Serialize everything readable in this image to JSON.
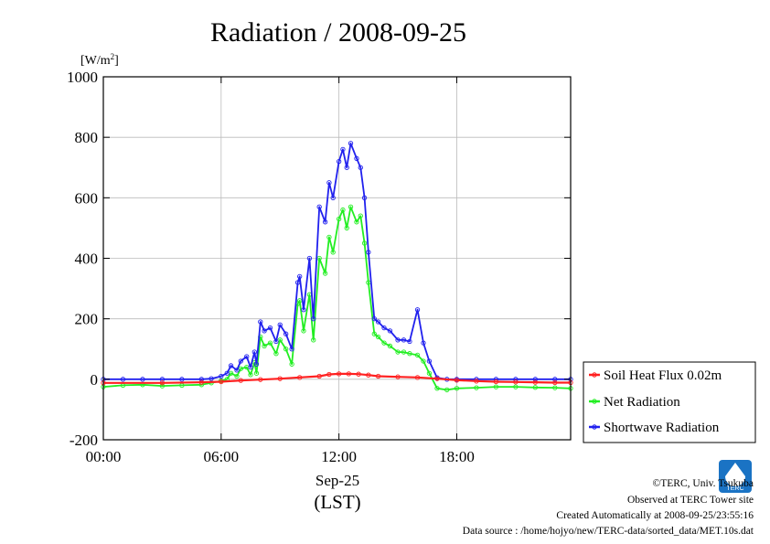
{
  "chart_data": {
    "type": "line",
    "title": "Radiation / 2008-09-25",
    "yunit_base": "[W/m",
    "yunit_sup": "2",
    "yunit_close": "]",
    "ylim": [
      -200,
      1000
    ],
    "yticks": [
      "-200",
      "0",
      "200",
      "400",
      "600",
      "800",
      "1000"
    ],
    "ytick_values": [
      -200,
      0,
      200,
      400,
      600,
      800,
      1000
    ],
    "xlim": [
      0,
      23.8
    ],
    "xticks": [
      "00:00",
      "06:00",
      "12:00",
      "18:00"
    ],
    "xtick_values": [
      0,
      6,
      12,
      18
    ],
    "xlabel_date": "Sep-25",
    "xlabel_tz": "(LST)",
    "grid": true,
    "legend_position": "right",
    "series": [
      {
        "name": "Soil Heat Flux 0.02m",
        "color": "#ff2020",
        "hours": [
          0,
          3,
          5,
          6,
          7,
          8,
          9,
          10,
          11,
          11.5,
          12,
          12.5,
          13,
          13.5,
          14,
          15,
          16,
          17,
          18,
          19,
          20,
          21,
          22,
          23,
          23.8
        ],
        "values": [
          -12,
          -12,
          -10,
          -8,
          -4,
          -1,
          2,
          6,
          10,
          16,
          18,
          18,
          17,
          14,
          10,
          8,
          6,
          2,
          -3,
          -6,
          -8,
          -9,
          -10,
          -11,
          -11
        ]
      },
      {
        "name": "Net Radiation",
        "color": "#22ee22",
        "hours": [
          0,
          1,
          2,
          3,
          4,
          5,
          5.5,
          6,
          6.3,
          6.5,
          6.8,
          7,
          7.3,
          7.5,
          7.7,
          7.8,
          8,
          8.2,
          8.5,
          8.8,
          9,
          9.3,
          9.6,
          9.9,
          10,
          10.2,
          10.5,
          10.7,
          11,
          11.3,
          11.5,
          11.7,
          12,
          12.2,
          12.4,
          12.6,
          12.9,
          13.1,
          13.3,
          13.5,
          13.8,
          14,
          14.3,
          14.6,
          15,
          15.3,
          15.6,
          16,
          16.3,
          16.6,
          17,
          17.5,
          18,
          19,
          20,
          21,
          22,
          23,
          23.8
        ],
        "values": [
          -25,
          -20,
          -18,
          -22,
          -20,
          -18,
          -12,
          -5,
          0,
          20,
          10,
          35,
          40,
          15,
          55,
          20,
          140,
          110,
          120,
          85,
          130,
          100,
          50,
          250,
          260,
          160,
          280,
          130,
          400,
          350,
          470,
          420,
          530,
          560,
          500,
          570,
          520,
          540,
          450,
          320,
          150,
          140,
          120,
          110,
          90,
          90,
          85,
          80,
          60,
          20,
          -30,
          -35,
          -30,
          -28,
          -25,
          -25,
          -27,
          -28,
          -30
        ]
      },
      {
        "name": "Shortwave Radiation",
        "color": "#2020ee",
        "hours": [
          0,
          1,
          2,
          3,
          4,
          5,
          5.5,
          6,
          6.3,
          6.5,
          6.8,
          7,
          7.3,
          7.5,
          7.7,
          7.8,
          8,
          8.2,
          8.5,
          8.8,
          9,
          9.3,
          9.6,
          9.9,
          10,
          10.2,
          10.5,
          10.7,
          11,
          11.3,
          11.5,
          11.7,
          12,
          12.2,
          12.4,
          12.6,
          12.9,
          13.1,
          13.3,
          13.5,
          13.8,
          14,
          14.3,
          14.6,
          15,
          15.3,
          15.6,
          16,
          16.3,
          16.6,
          17,
          17.5,
          18,
          19,
          20,
          21,
          22,
          23,
          23.8
        ],
        "values": [
          0,
          0,
          0,
          0,
          0,
          0,
          2,
          10,
          20,
          45,
          30,
          60,
          75,
          40,
          90,
          50,
          190,
          160,
          170,
          125,
          180,
          150,
          100,
          320,
          340,
          230,
          400,
          200,
          570,
          520,
          650,
          600,
          720,
          760,
          700,
          780,
          730,
          700,
          600,
          420,
          200,
          190,
          170,
          160,
          130,
          130,
          125,
          230,
          120,
          60,
          5,
          0,
          0,
          0,
          0,
          0,
          0,
          0,
          0
        ]
      }
    ]
  },
  "footer": {
    "line1": "©TERC, Univ. Tsukuba",
    "line2": "Observed at TERC Tower site",
    "line3": "Created Automatically at 2008-09-25/23:55:16",
    "line4": "Data source : /home/hojyo/new/TERC-data/sorted_data/MET.10s.dat"
  },
  "logo": {
    "text": "TERC",
    "color": "#1a73c4"
  }
}
